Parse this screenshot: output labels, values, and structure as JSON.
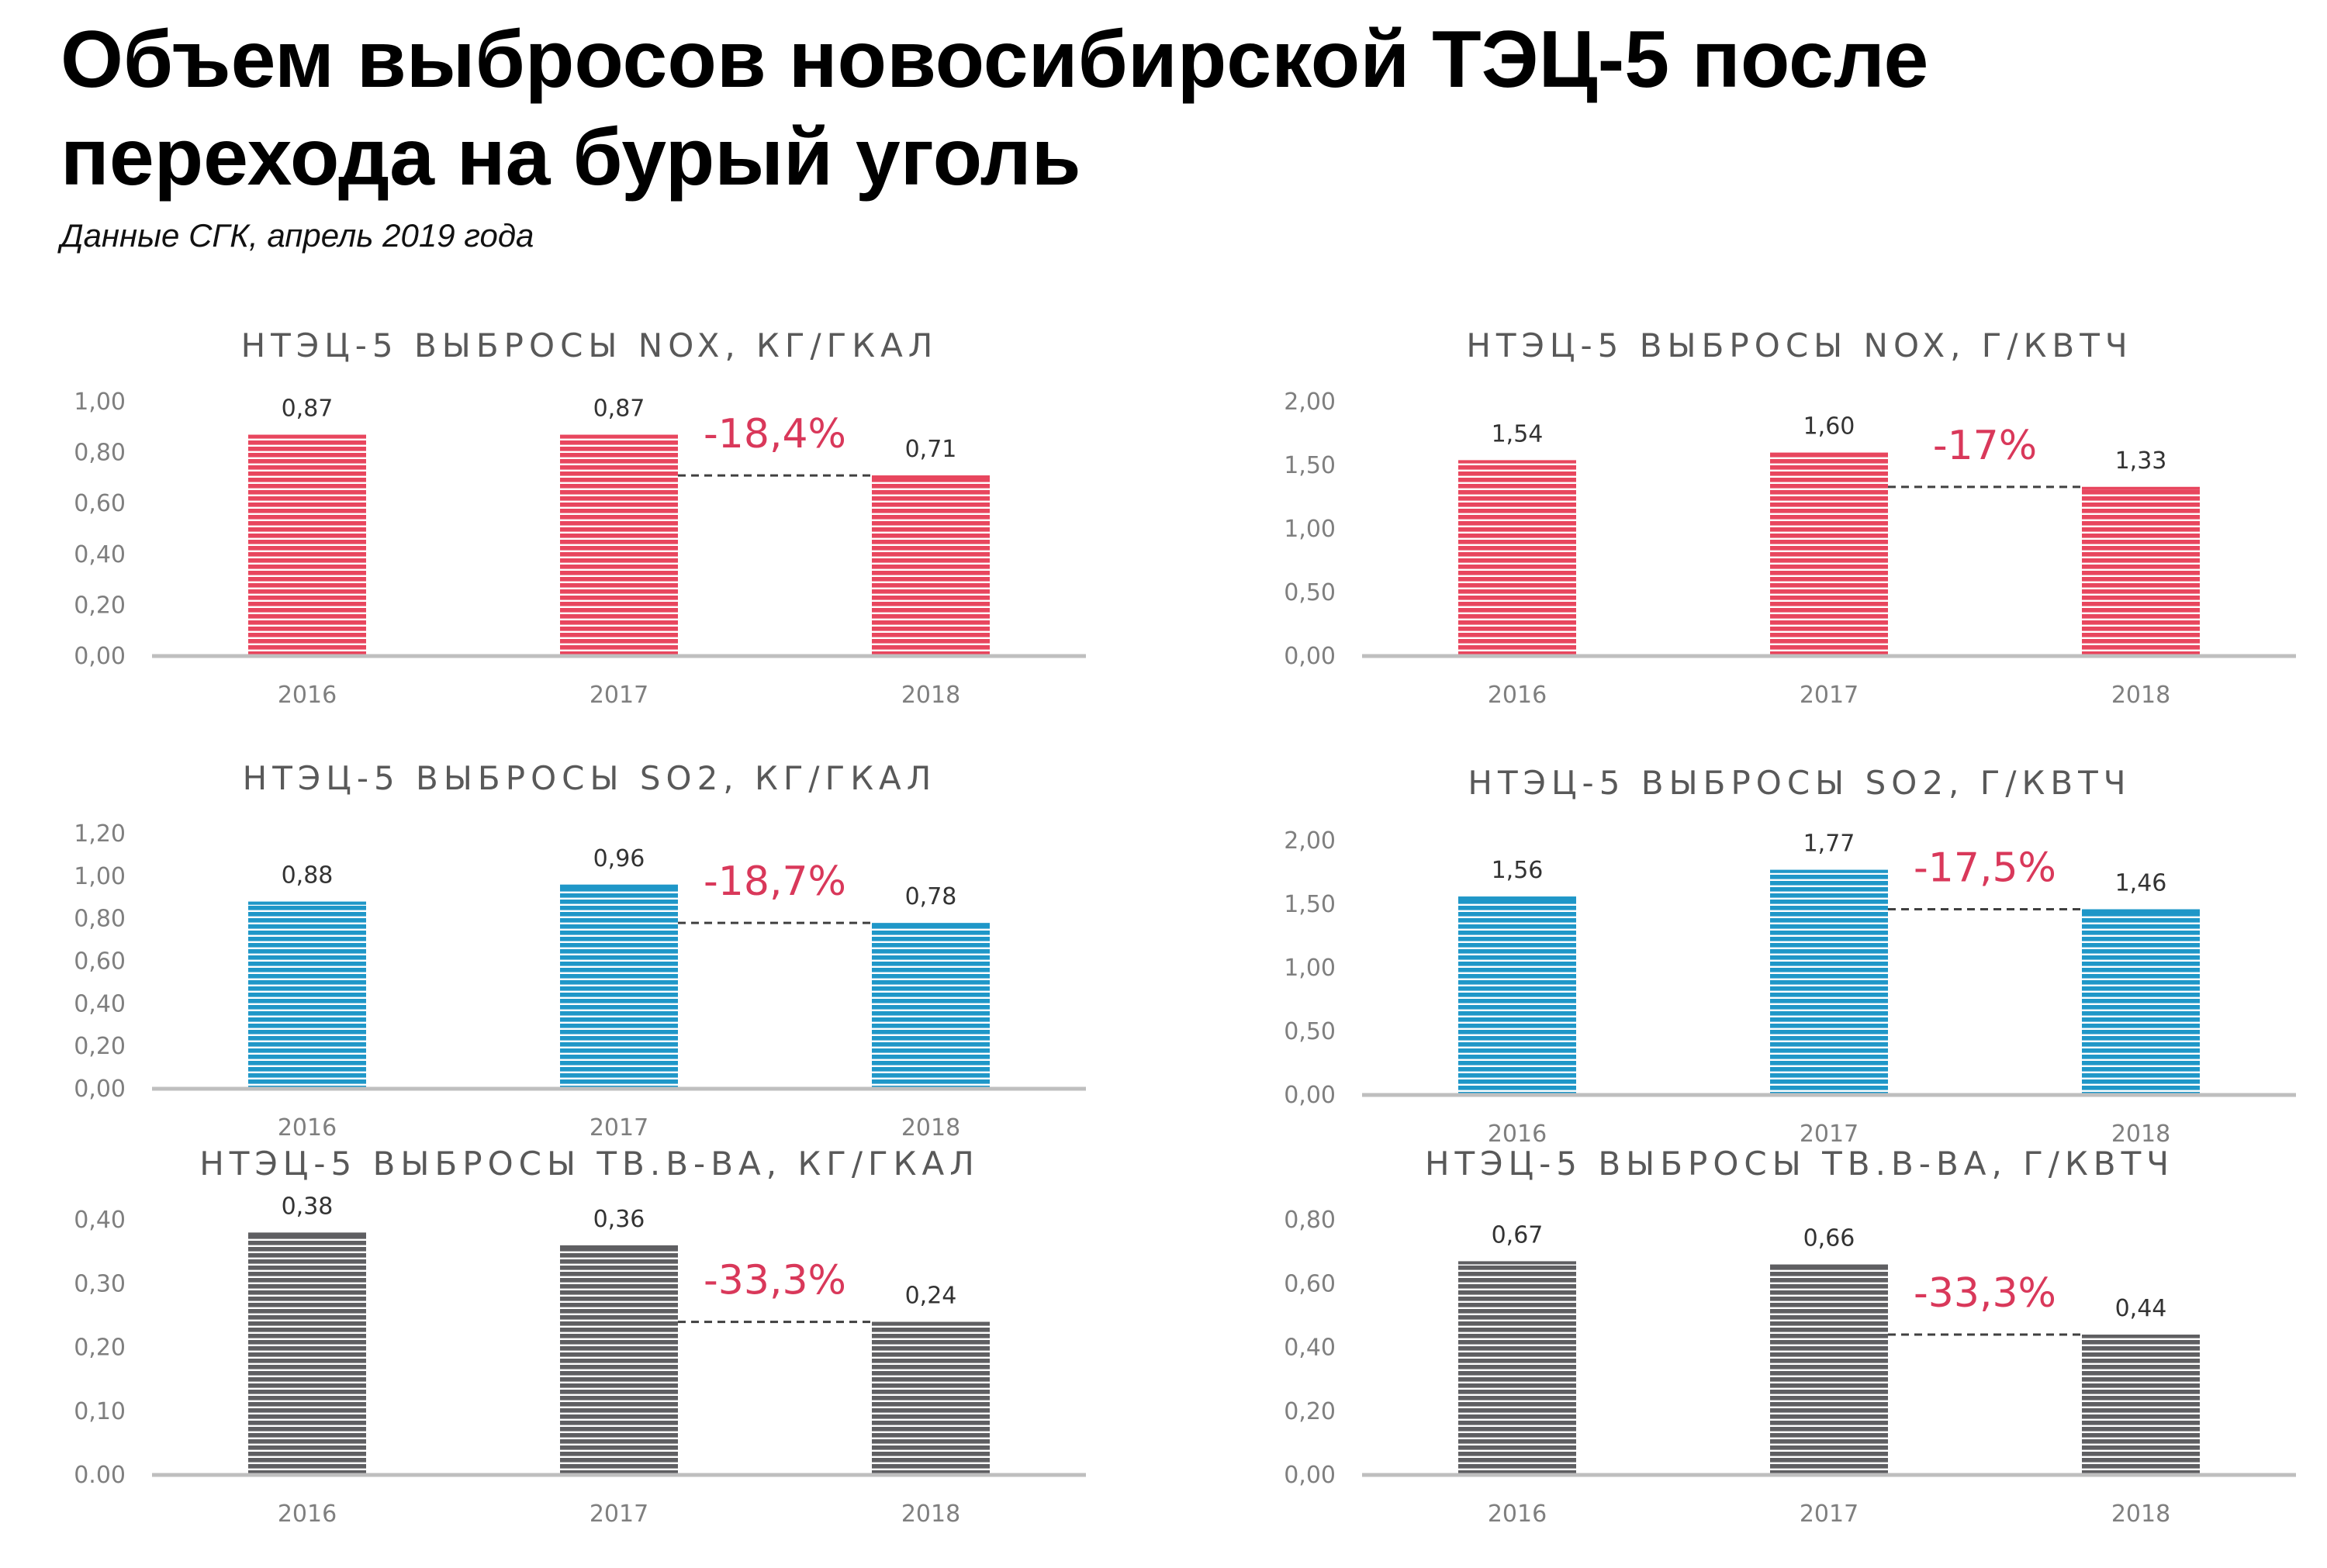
{
  "header": {
    "title_line1": "Объем выбросов новосибирской ТЭЦ-5 после",
    "title_line2": "перехода на бурый уголь",
    "subtitle": "Данные СГК, апрель 2019 года"
  },
  "colors": {
    "nox": "#e8465e",
    "so2": "#1f97c8",
    "dust": "#5f5f62",
    "delta": "#d9385a",
    "axis": "#bfbfbf",
    "dashed": "#404040"
  },
  "chart_data": [
    {
      "id": "nox-kg",
      "type": "bar",
      "title": "НТЭЦ-5 ВЫБРОСЫ NOX, КГ/ГКАЛ",
      "categories": [
        "2016",
        "2017",
        "2018"
      ],
      "values": [
        0.87,
        0.87,
        0.71
      ],
      "value_labels": [
        "0,87",
        "0,87",
        "0,71"
      ],
      "ylim": [
        0,
        1.0
      ],
      "yticks": [
        "0,00",
        "0,20",
        "0,40",
        "0,60",
        "0,80",
        "1,00"
      ],
      "change": "-18,4%",
      "color": "nox"
    },
    {
      "id": "nox-g",
      "type": "bar",
      "title": "НТЭЦ-5 ВЫБРОСЫ NOX, Г/КВТЧ",
      "categories": [
        "2016",
        "2017",
        "2018"
      ],
      "values": [
        1.54,
        1.6,
        1.33
      ],
      "value_labels": [
        "1,54",
        "1,60",
        "1,33"
      ],
      "ylim": [
        0,
        2.0
      ],
      "yticks": [
        "0,00",
        "0,50",
        "1,00",
        "1,50",
        "2,00"
      ],
      "change": "-17%",
      "color": "nox"
    },
    {
      "id": "so2-kg",
      "type": "bar",
      "title": "НТЭЦ-5 ВЫБРОСЫ SO2, КГ/ГКАЛ",
      "categories": [
        "2016",
        "2017",
        "2018"
      ],
      "values": [
        0.88,
        0.96,
        0.78
      ],
      "value_labels": [
        "0,88",
        "0,96",
        "0,78"
      ],
      "ylim": [
        0,
        1.2
      ],
      "yticks": [
        "0,00",
        "0,20",
        "0,40",
        "0,60",
        "0,80",
        "1,00",
        "1,20"
      ],
      "change": "-18,7%",
      "color": "so2"
    },
    {
      "id": "so2-g",
      "type": "bar",
      "title": "НТЭЦ-5 ВЫБРОСЫ SO2, Г/КВТЧ",
      "categories": [
        "2016",
        "2017",
        "2018"
      ],
      "values": [
        1.56,
        1.77,
        1.46
      ],
      "value_labels": [
        "1,56",
        "1,77",
        "1,46"
      ],
      "ylim": [
        0,
        2.0
      ],
      "yticks": [
        "0,00",
        "0,50",
        "1,00",
        "1,50",
        "2,00"
      ],
      "change": "-17,5%",
      "color": "so2"
    },
    {
      "id": "dust-kg",
      "type": "bar",
      "title": "НТЭЦ-5 ВЫБРОСЫ ТВ.В-ВА, КГ/ГКАЛ",
      "categories": [
        "2016",
        "2017",
        "2018"
      ],
      "values": [
        0.38,
        0.36,
        0.24
      ],
      "value_labels": [
        "0,38",
        "0,36",
        "0,24"
      ],
      "ylim": [
        0,
        0.4
      ],
      "yticks": [
        "0.00",
        "0,10",
        "0,20",
        "0,30",
        "0,40"
      ],
      "change": "-33,3%",
      "color": "dust"
    },
    {
      "id": "dust-g",
      "type": "bar",
      "title": "НТЭЦ-5 ВЫБРОСЫ ТВ.В-ВА, Г/КВТЧ",
      "categories": [
        "2016",
        "2017",
        "2018"
      ],
      "values": [
        0.67,
        0.66,
        0.44
      ],
      "value_labels": [
        "0,67",
        "0,66",
        "0,44"
      ],
      "ylim": [
        0,
        0.8
      ],
      "yticks": [
        "0,00",
        "0,20",
        "0,40",
        "0,60",
        "0,80"
      ],
      "change": "-33,3%",
      "color": "dust"
    }
  ]
}
